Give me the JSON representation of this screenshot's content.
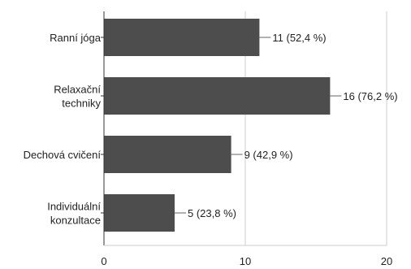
{
  "chart_data": {
    "type": "bar",
    "orientation": "horizontal",
    "categories": [
      [
        "Ranní jóga"
      ],
      [
        "Relaxační",
        "techniky"
      ],
      [
        "Dechová cvičení"
      ],
      [
        "Individuální",
        "konzultace"
      ]
    ],
    "values": [
      11,
      16,
      9,
      5
    ],
    "data_labels": [
      "11 (52,4 %)",
      "16 (76,2 %)",
      "9 (42,9 %)",
      "5 (23,8 %)"
    ],
    "xlim": [
      0,
      20
    ],
    "x_ticks": [
      0,
      10,
      20
    ],
    "x_tick_labels": [
      "0",
      "10",
      "20"
    ],
    "grid": true,
    "colors": {
      "bar": "#4d4d4d",
      "grid": "#cccccc",
      "axis": "#333333",
      "leader": "#666666"
    }
  }
}
